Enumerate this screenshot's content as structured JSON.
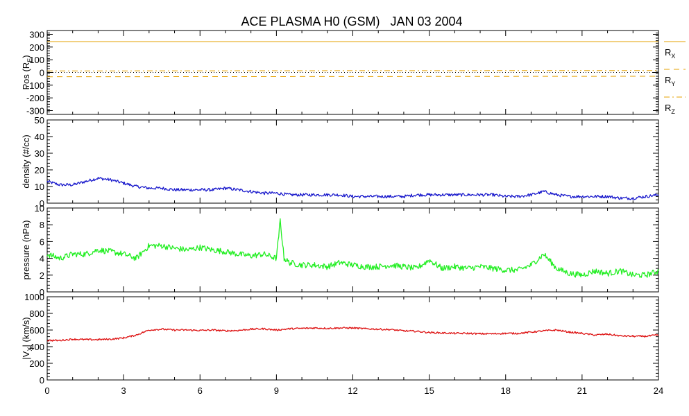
{
  "title": "ACE PLASMA H0 (GSM)   JAN 03 2004",
  "x_axis": {
    "ticks": [
      "0",
      "3",
      "6",
      "9",
      "12",
      "15",
      "18",
      "21",
      "24"
    ],
    "range": [
      0,
      24
    ],
    "unit_hint": "hours"
  },
  "colors": {
    "position": "#e6a100",
    "density": "#1a1acc",
    "pressure": "#22ee22",
    "velocity": "#dd1111",
    "zero_line": "#000000"
  },
  "chart_data": [
    {
      "type": "line",
      "panel": "position",
      "ylabel_main": "Pos (R",
      "ylabel_sub": "E",
      "ylabel_end": ")",
      "ylim": [
        -330,
        330
      ],
      "yticks": [
        "300",
        "200",
        "100",
        "0",
        "-100",
        "-200",
        "-300"
      ],
      "ytick_values": [
        300,
        200,
        100,
        0,
        -100,
        -200,
        -300
      ],
      "legend_position": "right",
      "series": [
        {
          "name": "R_X",
          "label_main": "R",
          "label_sub": "X",
          "style": "solid",
          "x": [
            0,
            24
          ],
          "values": [
            243,
            243
          ]
        },
        {
          "name": "R_Y",
          "label_main": "R",
          "label_sub": "Y",
          "style": "dashed",
          "x": [
            0,
            6,
            12,
            18,
            24
          ],
          "values": [
            -34,
            -33,
            -32,
            -31,
            -30
          ]
        },
        {
          "name": "R_Z",
          "label_main": "R",
          "label_sub": "Z",
          "style": "dashdot",
          "x": [
            0,
            6,
            12,
            18,
            24
          ],
          "values": [
            12,
            13,
            14,
            15,
            15
          ]
        }
      ]
    },
    {
      "type": "line",
      "panel": "density",
      "ylabel": "density (#/cc)",
      "ylim": [
        0,
        50
      ],
      "yticks": [
        "50",
        "40",
        "30",
        "20",
        "10",
        "0"
      ],
      "ytick_values": [
        50,
        40,
        30,
        20,
        10,
        0
      ],
      "series": [
        {
          "name": "density",
          "x": [
            0,
            0.5,
            1,
            1.5,
            2,
            2.5,
            3,
            3.5,
            4,
            4.5,
            5,
            5.5,
            6,
            6.5,
            7,
            7.5,
            8,
            8.5,
            9,
            9.5,
            10,
            10.5,
            11,
            11.5,
            12,
            12.5,
            13,
            13.5,
            14,
            14.5,
            15,
            15.5,
            16,
            16.5,
            17,
            17.5,
            18,
            18.5,
            19,
            19.5,
            20,
            20.5,
            21,
            21.5,
            22,
            22.5,
            23,
            23.5,
            24
          ],
          "values": [
            13,
            11,
            11,
            13,
            15,
            14,
            12,
            10,
            9,
            9,
            8,
            8,
            8,
            8,
            9,
            8,
            7,
            6,
            6,
            5,
            5,
            5,
            5,
            5,
            4,
            4,
            4,
            4,
            4,
            5,
            5,
            5,
            5,
            5,
            5,
            5,
            4,
            4,
            5,
            7,
            5,
            4,
            4,
            4,
            4,
            3,
            3,
            4,
            5
          ]
        }
      ]
    },
    {
      "type": "line",
      "panel": "pressure",
      "ylabel": "pressure (nPa)",
      "ylim": [
        0,
        10
      ],
      "yticks": [
        "10",
        "8",
        "6",
        "4",
        "2",
        "0"
      ],
      "ytick_values": [
        10,
        8,
        6,
        4,
        2,
        0
      ],
      "series": [
        {
          "name": "pressure",
          "x": [
            0,
            0.5,
            1,
            1.5,
            2,
            2.5,
            3,
            3.5,
            4,
            4.5,
            5,
            5.5,
            6,
            6.5,
            7,
            7.5,
            8,
            8.5,
            9,
            9.15,
            9.3,
            9.5,
            10,
            10.5,
            11,
            11.5,
            12,
            12.5,
            13,
            13.5,
            14,
            14.5,
            15,
            15.5,
            16,
            16.5,
            17,
            17.5,
            18,
            18.5,
            19,
            19.5,
            20,
            20.5,
            21,
            21.5,
            22,
            22.5,
            23,
            23.5,
            24
          ],
          "values": [
            4.5,
            4,
            4.5,
            4.5,
            5,
            4.8,
            4.5,
            4,
            5.5,
            5.5,
            5.2,
            5,
            5.3,
            5,
            4.8,
            4.5,
            4.3,
            4.5,
            4,
            8.5,
            4,
            3.5,
            3.2,
            3.2,
            3,
            3.5,
            3.2,
            3,
            3,
            3.2,
            3,
            2.8,
            3.8,
            2.8,
            3,
            2.8,
            3,
            2.8,
            2.6,
            2.6,
            3.2,
            4.5,
            2.8,
            2.2,
            2,
            2.5,
            2.2,
            2.5,
            2,
            2,
            2.5
          ]
        }
      ]
    },
    {
      "type": "line",
      "panel": "velocity",
      "ylabel_main": "|V",
      "ylabel_sub": "X",
      "ylabel_end": "| (km/s)",
      "ylim": [
        0,
        1000
      ],
      "yticks": [
        "1000",
        "800",
        "600",
        "400",
        "200",
        "0"
      ],
      "ytick_values": [
        1000,
        800,
        600,
        400,
        200,
        0
      ],
      "series": [
        {
          "name": "velocity",
          "x": [
            0,
            0.5,
            1,
            1.5,
            2,
            2.5,
            3,
            3.5,
            4,
            4.5,
            5,
            5.5,
            6,
            6.5,
            7,
            7.5,
            8,
            8.5,
            9,
            9.5,
            10,
            10.5,
            11,
            11.5,
            12,
            12.5,
            13,
            13.5,
            14,
            14.5,
            15,
            15.5,
            16,
            16.5,
            17,
            17.5,
            18,
            18.5,
            19,
            19.5,
            20,
            20.5,
            21,
            21.5,
            22,
            22.5,
            23,
            23.5,
            24
          ],
          "values": [
            475,
            475,
            490,
            485,
            485,
            490,
            505,
            540,
            600,
            610,
            600,
            600,
            595,
            600,
            590,
            595,
            610,
            615,
            600,
            615,
            620,
            625,
            620,
            625,
            625,
            615,
            610,
            605,
            590,
            585,
            570,
            565,
            560,
            560,
            555,
            555,
            560,
            560,
            575,
            590,
            600,
            575,
            560,
            540,
            550,
            530,
            525,
            525,
            540
          ]
        }
      ]
    }
  ]
}
